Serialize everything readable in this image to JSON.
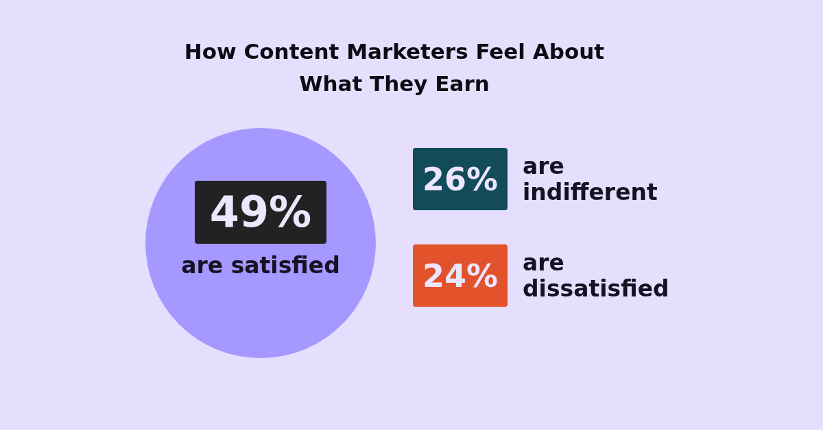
{
  "chart_data": {
    "type": "other",
    "title": "How Content Marketers Feel About What They Earn",
    "categories": [
      "are satisfied",
      "are indifferent",
      "are dissatisfied"
    ],
    "values": [
      49,
      26,
      24
    ],
    "value_labels": [
      "49%",
      "26%",
      "24%"
    ],
    "colors": [
      "#222222",
      "#124b59",
      "#e2522b"
    ]
  }
}
